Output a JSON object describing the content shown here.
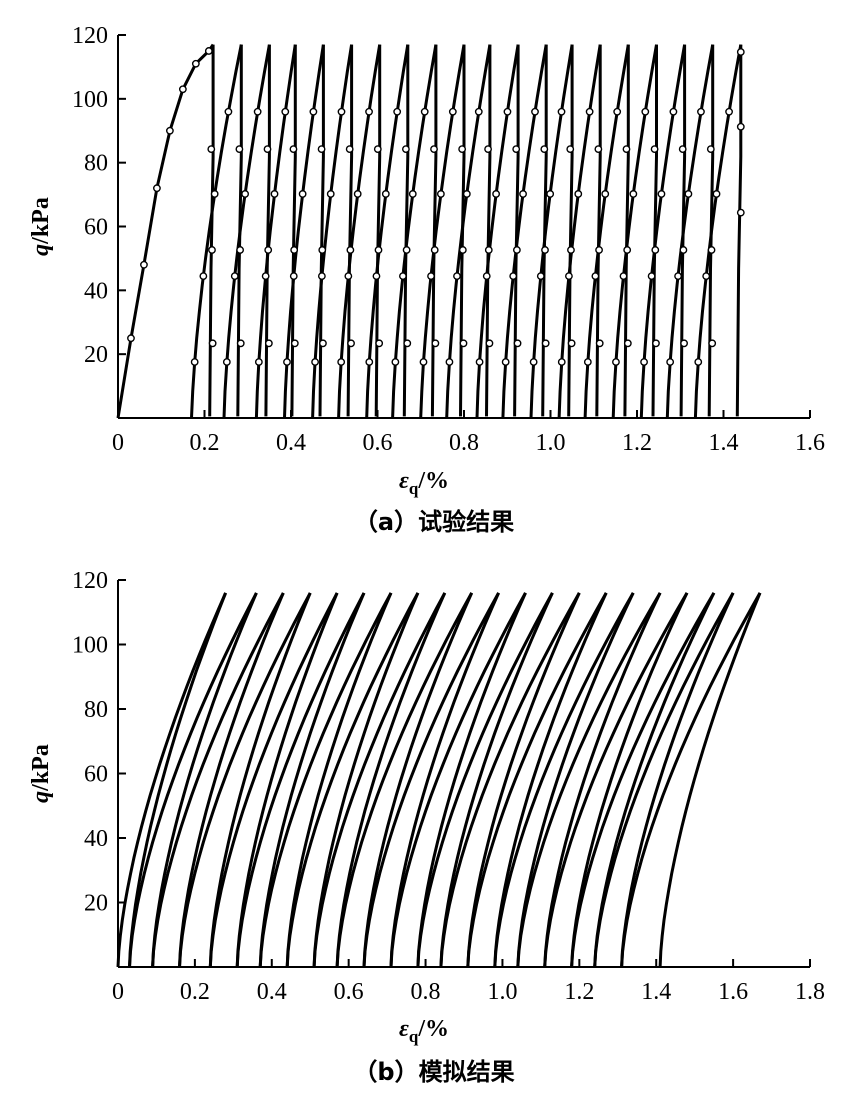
{
  "chart_data": [
    {
      "id": "a",
      "type": "line",
      "caption": "（a）试验结果",
      "xlabel_main": "ε",
      "xlabel_sub": "q",
      "xlabel_unit": "/%",
      "ylabel_main": "q",
      "ylabel_unit": "/kPa",
      "xlim": [
        0,
        1.6
      ],
      "ylim": [
        0,
        120
      ],
      "xticks": [
        0,
        0.2,
        0.4,
        0.6,
        0.8,
        1.0,
        1.2,
        1.4,
        1.6
      ],
      "xtick_labels": [
        "0",
        "0.2",
        "0.4",
        "0.6",
        "0.8",
        "1.0",
        "1.2",
        "1.4",
        "1.6"
      ],
      "yticks": [
        20,
        40,
        60,
        80,
        100,
        120
      ],
      "ytick_labels": [
        "20",
        "40",
        "60",
        "80",
        "100",
        "120"
      ],
      "grid": false,
      "markers": true,
      "initial_loading": {
        "x": [
          0.0,
          0.03,
          0.06,
          0.09,
          0.12,
          0.15,
          0.18,
          0.21,
          0.22
        ],
        "y": [
          0,
          25,
          48,
          72,
          90,
          103,
          111,
          115,
          117
        ]
      },
      "cycles": [
        {
          "unload_x": 0.22,
          "reload_start": 0.17,
          "peak": 0.285
        },
        {
          "unload_x": 0.285,
          "reload_start": 0.245,
          "peak": 0.35
        },
        {
          "unload_x": 0.35,
          "reload_start": 0.32,
          "peak": 0.41
        },
        {
          "unload_x": 0.41,
          "reload_start": 0.385,
          "peak": 0.475
        },
        {
          "unload_x": 0.475,
          "reload_start": 0.45,
          "peak": 0.54
        },
        {
          "unload_x": 0.54,
          "reload_start": 0.51,
          "peak": 0.605
        },
        {
          "unload_x": 0.605,
          "reload_start": 0.575,
          "peak": 0.67
        },
        {
          "unload_x": 0.67,
          "reload_start": 0.635,
          "peak": 0.735
        },
        {
          "unload_x": 0.735,
          "reload_start": 0.7,
          "peak": 0.8
        },
        {
          "unload_x": 0.8,
          "reload_start": 0.76,
          "peak": 0.86
        },
        {
          "unload_x": 0.86,
          "reload_start": 0.83,
          "peak": 0.925
        },
        {
          "unload_x": 0.925,
          "reload_start": 0.89,
          "peak": 0.99
        },
        {
          "unload_x": 0.99,
          "reload_start": 0.955,
          "peak": 1.05
        },
        {
          "unload_x": 1.05,
          "reload_start": 1.02,
          "peak": 1.115
        },
        {
          "unload_x": 1.115,
          "reload_start": 1.08,
          "peak": 1.18
        },
        {
          "unload_x": 1.18,
          "reload_start": 1.145,
          "peak": 1.245
        },
        {
          "unload_x": 1.245,
          "reload_start": 1.21,
          "peak": 1.31
        },
        {
          "unload_x": 1.31,
          "reload_start": 1.27,
          "peak": 1.375
        },
        {
          "unload_x": 1.375,
          "reload_start": 1.335,
          "peak": 1.44
        },
        {
          "unload_x": 1.44,
          "reload_start": 1.4,
          "peak": 1.44
        }
      ],
      "q_max": 117
    },
    {
      "id": "b",
      "type": "line",
      "caption": "（b）模拟结果",
      "xlabel_main": "ε",
      "xlabel_sub": "q",
      "xlabel_unit": "/%",
      "ylabel_main": "q",
      "ylabel_unit": "/kPa",
      "xlim": [
        0,
        1.8
      ],
      "ylim": [
        0,
        120
      ],
      "xticks": [
        0,
        0.2,
        0.4,
        0.6,
        0.8,
        1.0,
        1.2,
        1.4,
        1.6,
        1.8
      ],
      "xtick_labels": [
        "0",
        "0.2",
        "0.4",
        "0.6",
        "0.8",
        "1.0",
        "1.2",
        "1.4",
        "1.6",
        "1.8"
      ],
      "yticks": [
        20,
        40,
        60,
        80,
        100,
        120
      ],
      "ytick_labels": [
        "20",
        "40",
        "60",
        "80",
        "100",
        "120"
      ],
      "grid": false,
      "markers": false,
      "loops": [
        {
          "start": 0.0,
          "peak": 0.28
        },
        {
          "start": 0.03,
          "peak": 0.36
        },
        {
          "start": 0.09,
          "peak": 0.43
        },
        {
          "start": 0.16,
          "peak": 0.5
        },
        {
          "start": 0.24,
          "peak": 0.57
        },
        {
          "start": 0.31,
          "peak": 0.64
        },
        {
          "start": 0.37,
          "peak": 0.71
        },
        {
          "start": 0.44,
          "peak": 0.78
        },
        {
          "start": 0.51,
          "peak": 0.85
        },
        {
          "start": 0.57,
          "peak": 0.92
        },
        {
          "start": 0.64,
          "peak": 0.99
        },
        {
          "start": 0.71,
          "peak": 1.06
        },
        {
          "start": 0.78,
          "peak": 1.13
        },
        {
          "start": 0.84,
          "peak": 1.2
        },
        {
          "start": 0.91,
          "peak": 1.27
        },
        {
          "start": 0.98,
          "peak": 1.34
        },
        {
          "start": 1.04,
          "peak": 1.41
        },
        {
          "start": 1.11,
          "peak": 1.48
        },
        {
          "start": 1.18,
          "peak": 1.55
        },
        {
          "start": 1.24,
          "peak": 1.6
        },
        {
          "start": 1.31,
          "peak": 1.67
        }
      ],
      "final_unload": {
        "start": 1.67,
        "end": 1.41
      },
      "q_max": 116
    }
  ]
}
